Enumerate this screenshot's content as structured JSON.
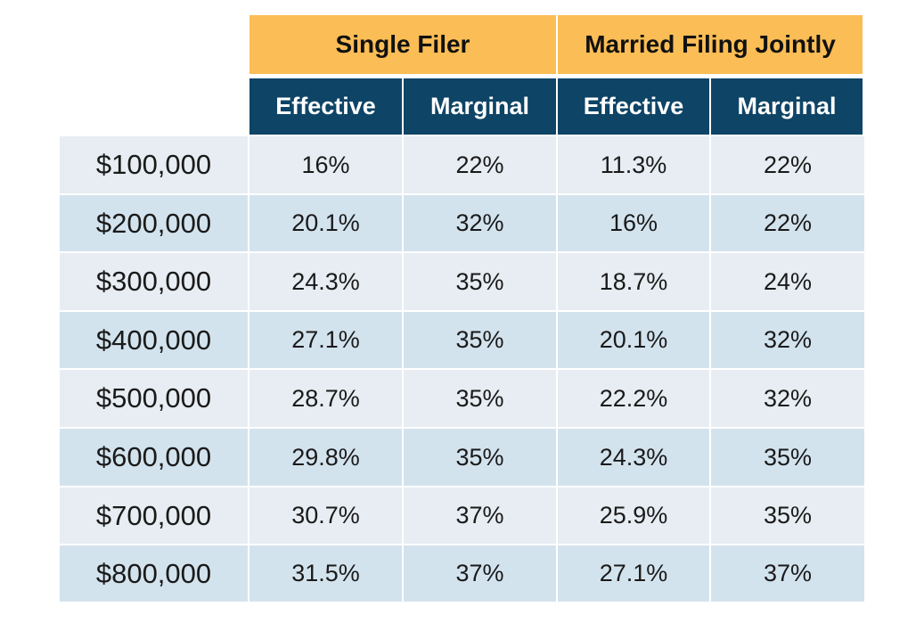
{
  "colors": {
    "group_header_bg": "#fbbd55",
    "sub_header_bg": "#0e4466",
    "sub_header_text": "#ffffff",
    "row_light": "#e7edf2",
    "row_dark": "#d3e3ee"
  },
  "table": {
    "groups": [
      "Single Filer",
      "Married Filing Jointly"
    ],
    "columns": [
      "Effective",
      "Marginal",
      "Effective",
      "Marginal"
    ],
    "rows": [
      {
        "income": "$100,000",
        "cells": [
          "16%",
          "22%",
          "11.3%",
          "22%"
        ]
      },
      {
        "income": "$200,000",
        "cells": [
          "20.1%",
          "32%",
          "16%",
          "22%"
        ]
      },
      {
        "income": "$300,000",
        "cells": [
          "24.3%",
          "35%",
          "18.7%",
          "24%"
        ]
      },
      {
        "income": "$400,000",
        "cells": [
          "27.1%",
          "35%",
          "20.1%",
          "32%"
        ]
      },
      {
        "income": "$500,000",
        "cells": [
          "28.7%",
          "35%",
          "22.2%",
          "32%"
        ]
      },
      {
        "income": "$600,000",
        "cells": [
          "29.8%",
          "35%",
          "24.3%",
          "35%"
        ]
      },
      {
        "income": "$700,000",
        "cells": [
          "30.7%",
          "37%",
          "25.9%",
          "35%"
        ]
      },
      {
        "income": "$800,000",
        "cells": [
          "31.5%",
          "37%",
          "27.1%",
          "37%"
        ]
      }
    ]
  },
  "chart_data": {
    "type": "table",
    "groups": [
      "Single Filer",
      "Married Filing Jointly"
    ],
    "columns": [
      "Single Filer Effective",
      "Single Filer Marginal",
      "Married Filing Jointly Effective",
      "Married Filing Jointly Marginal"
    ],
    "row_labels": [
      "$100,000",
      "$200,000",
      "$300,000",
      "$400,000",
      "$500,000",
      "$600,000",
      "$700,000",
      "$800,000"
    ],
    "values": [
      [
        16,
        22,
        11.3,
        22
      ],
      [
        20.1,
        32,
        16,
        22
      ],
      [
        24.3,
        35,
        18.7,
        24
      ],
      [
        27.1,
        35,
        20.1,
        32
      ],
      [
        28.7,
        35,
        22.2,
        32
      ],
      [
        29.8,
        35,
        24.3,
        35
      ],
      [
        30.7,
        37,
        25.9,
        35
      ],
      [
        31.5,
        37,
        27.1,
        37
      ]
    ],
    "value_unit": "%"
  }
}
